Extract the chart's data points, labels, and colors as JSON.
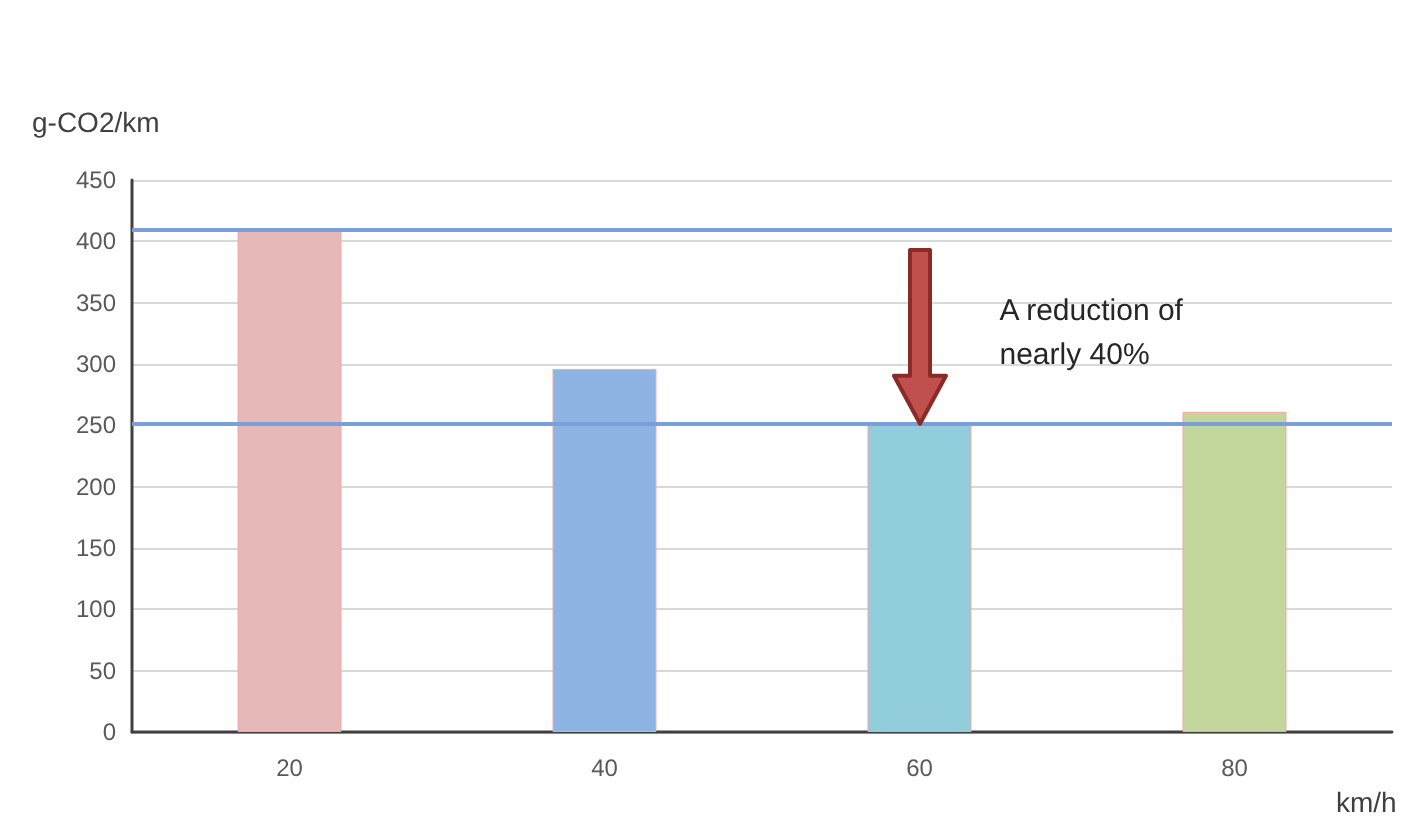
{
  "chart_data": {
    "type": "bar",
    "ylabel": "g-CO2/km",
    "xlabel": "km/h",
    "categories": [
      "20",
      "40",
      "60",
      "80"
    ],
    "values": [
      410,
      296,
      252,
      261
    ],
    "colors": [
      "#e6b8b7",
      "#8eb4e3",
      "#92cddc",
      "#c3d69b"
    ],
    "ylim": [
      0,
      450
    ],
    "yticks": [
      0,
      50,
      100,
      150,
      200,
      250,
      300,
      350,
      400,
      450
    ],
    "grid": "y",
    "ref_lines": [
      {
        "axis": "y",
        "value": 410,
        "color": "#7ba0d8"
      },
      {
        "axis": "y",
        "value": 252,
        "color": "#7ba0d8"
      }
    ],
    "annotations": [
      "A reduction of nearly 40%"
    ]
  }
}
